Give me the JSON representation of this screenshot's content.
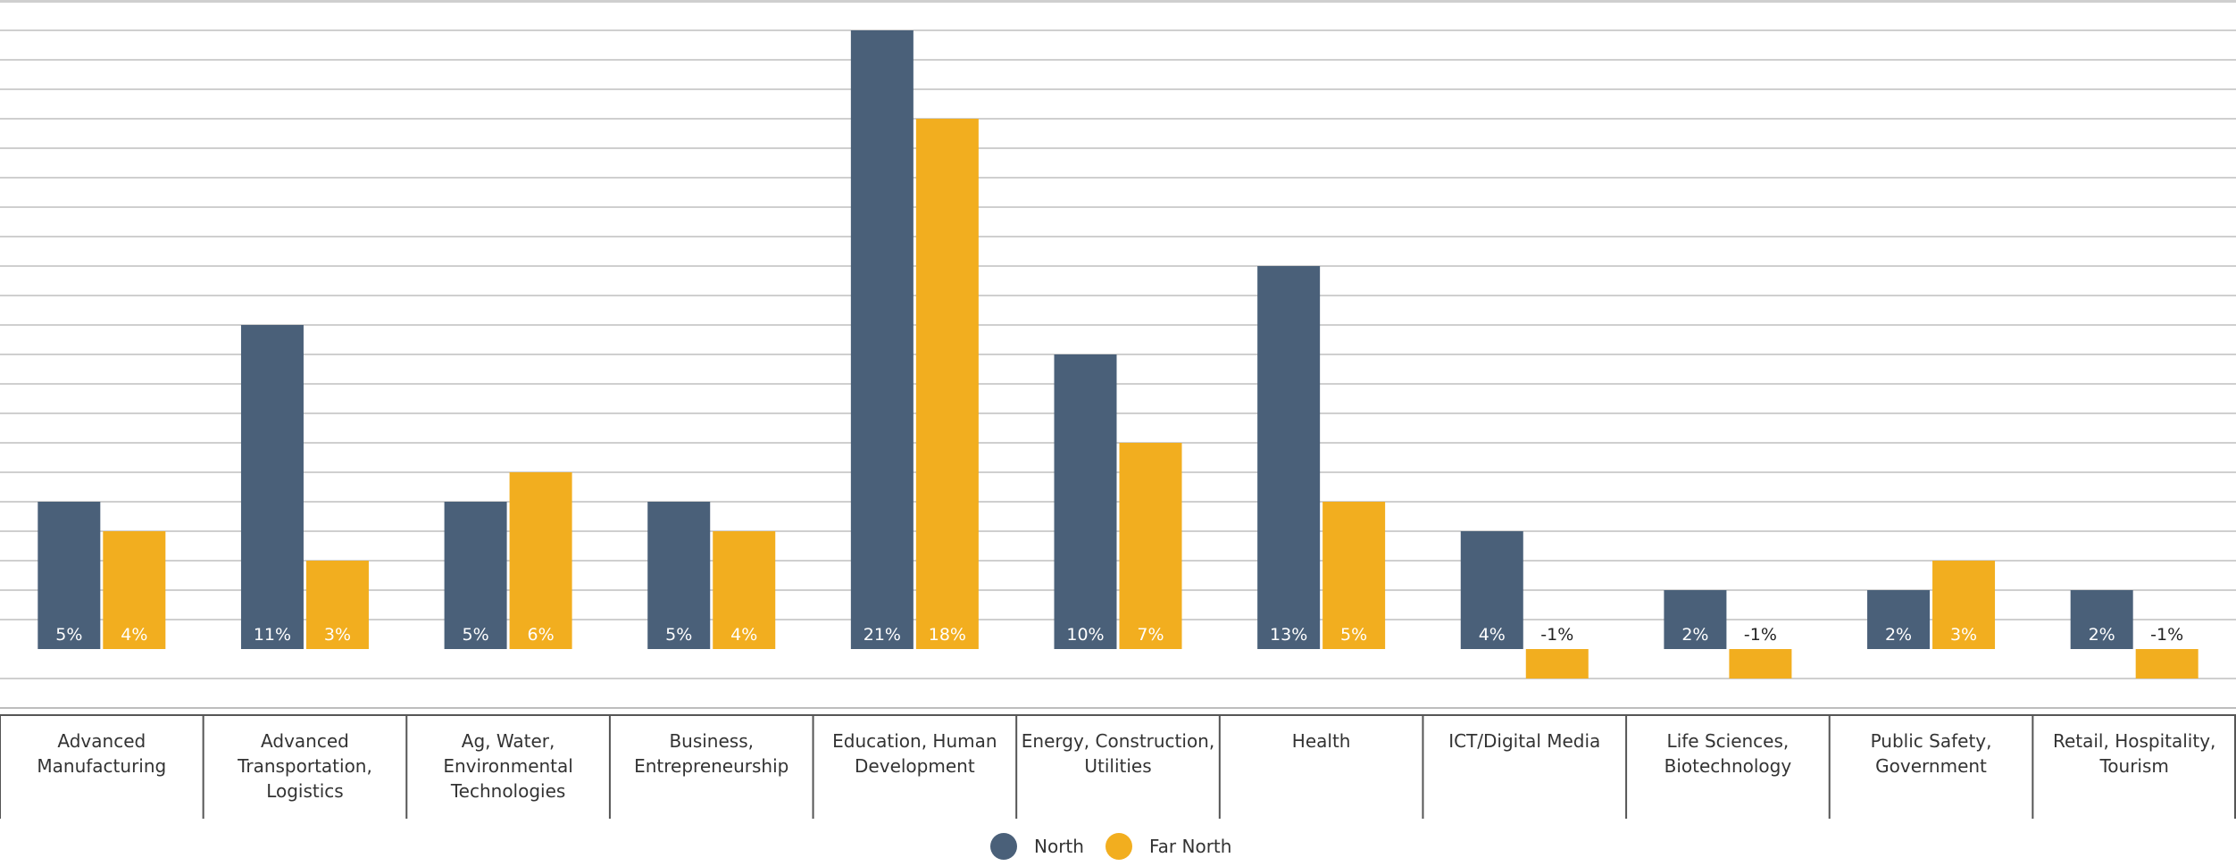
{
  "chart_data": {
    "type": "bar",
    "categories": [
      [
        "Advanced",
        "Manufacturing"
      ],
      [
        "Advanced",
        "Transportation,",
        "Logistics"
      ],
      [
        "Ag, Water,",
        "Environmental",
        "Technologies"
      ],
      [
        "Business,",
        "Entrepreneurship"
      ],
      [
        "Education, Human",
        "Development"
      ],
      [
        "Energy, Construction,",
        "Utilities"
      ],
      [
        "Health"
      ],
      [
        "ICT/Digital Media"
      ],
      [
        "Life Sciences,",
        "Biotechnology"
      ],
      [
        "Public Safety,",
        "Government"
      ],
      [
        "Retail, Hospitality,",
        "Tourism"
      ]
    ],
    "series": [
      {
        "name": "North",
        "color": "#4a6079",
        "values": [
          5,
          11,
          5,
          5,
          21,
          10,
          13,
          4,
          2,
          2,
          2
        ],
        "labels": [
          "5%",
          "11%",
          "5%",
          "5%",
          "21%",
          "10%",
          "13%",
          "4%",
          "2%",
          "2%",
          "2%"
        ]
      },
      {
        "name": "Far North",
        "color": "#f2ae1f",
        "values": [
          4,
          3,
          6,
          4,
          18,
          7,
          5,
          -1,
          -1,
          3,
          -1
        ],
        "labels": [
          "4%",
          "3%",
          "6%",
          "4%",
          "18%",
          "7%",
          "5%",
          "-1%",
          "-1%",
          "3%",
          "-1%"
        ]
      }
    ],
    "ylim": [
      -2,
      22
    ],
    "grid": true,
    "legend": "bottom-center"
  }
}
